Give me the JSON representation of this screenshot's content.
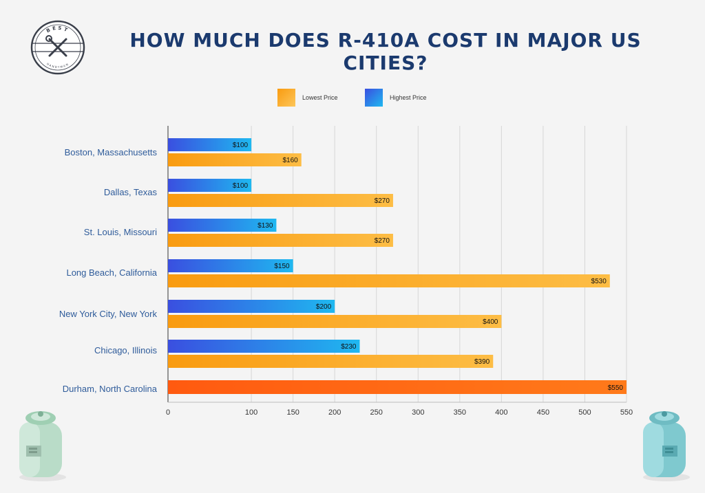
{
  "logo": {
    "top_text": "BEST",
    "bottom_text": "HANDYMAN"
  },
  "title": "HOW MUCH DOES R-410A COST IN MAJOR US CITIES?",
  "legend": {
    "lowest": "Lowest Price",
    "highest": "Highest Price"
  },
  "colors": {
    "title": "#1b3a6e",
    "city_label": "#2e5b9a",
    "lowest": "#fdb12f",
    "highest": "#2f7fe8",
    "single": "#ff5a12"
  },
  "chart_data": {
    "type": "bar",
    "orientation": "horizontal",
    "title": "HOW MUCH DOES R-410A COST IN MAJOR US CITIES?",
    "categories": [
      "Boston, Massachusetts",
      "Dallas, Texas",
      "St. Louis, Missouri",
      "Long Beach, California",
      "New York City, New York",
      "Chicago, Illinois",
      "Durham, North Carolina"
    ],
    "series": [
      {
        "name": "Highest Price",
        "values": [
          100,
          100,
          130,
          150,
          200,
          230,
          null
        ]
      },
      {
        "name": "Lowest Price",
        "values": [
          160,
          270,
          270,
          530,
          400,
          390,
          550
        ]
      }
    ],
    "data_labels": {
      "Highest Price": [
        "$100",
        "$100",
        "$130",
        "$150",
        "$200",
        "$230",
        ""
      ],
      "Lowest Price": [
        "$160",
        "$270",
        "$270",
        "$530",
        "$400",
        "$390",
        "$550"
      ]
    },
    "x_ticks": [
      "0",
      "100",
      "150",
      "200",
      "250",
      "300",
      "350",
      "400",
      "450",
      "500",
      "550"
    ],
    "xlim": [
      0,
      550
    ],
    "grid": true,
    "legend_position": "top-center"
  }
}
